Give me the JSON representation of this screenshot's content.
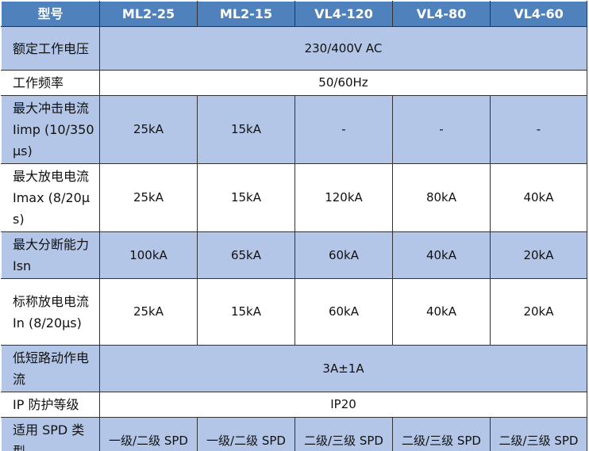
{
  "table": {
    "header": [
      "型号",
      "ML2-25",
      "ML2-15",
      "VL4-120",
      "VL4-80",
      "VL4-60"
    ],
    "rows": [
      {
        "label": "额定工作电压",
        "values": [
          "230/400V AC"
        ]
      },
      {
        "label": "工作频率",
        "values": [
          "50/60Hz"
        ]
      },
      {
        "label": "最大冲击电流 Iimp (10/350μs)",
        "values": [
          "25kA",
          "15kA",
          "-",
          "-",
          "-"
        ]
      },
      {
        "label": "最大放电电流 Imax (8/20μs)",
        "values": [
          "25kA",
          "15kA",
          "120kA",
          "80kA",
          "40kA"
        ]
      },
      {
        "label": "最大分断能力 Isn",
        "values": [
          "100kA",
          "65kA",
          "60kA",
          "40kA",
          "20kA"
        ]
      },
      {
        "label": "标称放电电流 In (8/20μs)",
        "values": [
          "25kA",
          "15kA",
          "60kA",
          "40kA",
          "20kA"
        ]
      },
      {
        "label": "低短路动作电流",
        "values": [
          "3A±1A"
        ]
      },
      {
        "label": "IP 防护等级",
        "values": [
          "IP20"
        ]
      },
      {
        "label": "适用 SPD 类型",
        "values": [
          "一级/二级 SPD",
          "一级/二级 SPD",
          "二级/三级 SPD",
          "二级/三级 SPD",
          "二级/三级 SPD"
        ]
      }
    ]
  }
}
